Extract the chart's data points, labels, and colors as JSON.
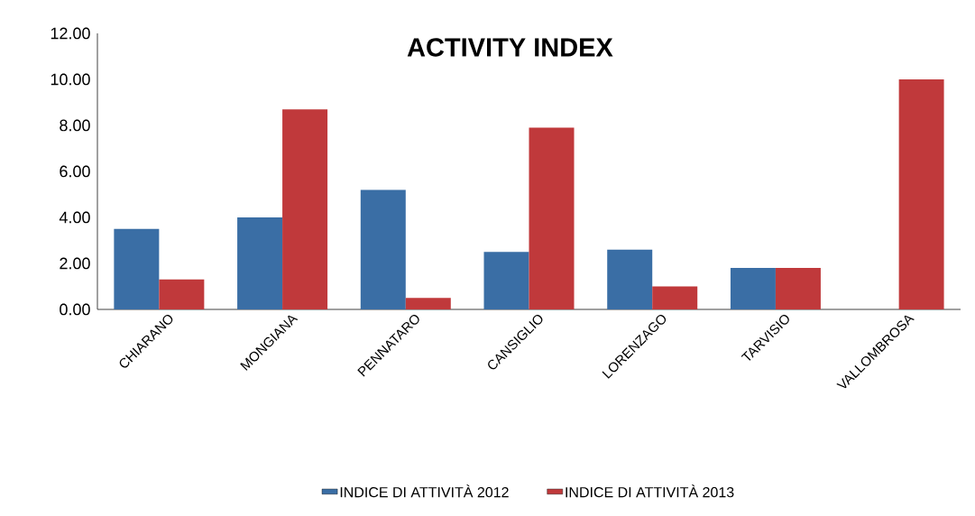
{
  "chart_data": {
    "type": "bar",
    "title": "ACTIVITY INDEX",
    "categories": [
      "CHIARANO",
      "MONGIANA",
      "PENNATARO",
      "CANSIGLIO",
      "LORENZAGO",
      "TARVISIO",
      "VALLOMBROSA"
    ],
    "series": [
      {
        "name": "INDICE DI ATTIVITÀ 2012",
        "color": "#3a6ea5",
        "values": [
          3.5,
          4.0,
          5.2,
          2.5,
          2.6,
          1.8,
          null
        ]
      },
      {
        "name": "INDICE DI ATTIVITÀ 2013",
        "color": "#c0393b",
        "values": [
          1.3,
          8.7,
          0.5,
          7.9,
          1.0,
          1.8,
          10.0
        ]
      }
    ],
    "ylim": [
      0,
      12
    ],
    "yticks": [
      {
        "value": 0,
        "label": "0.00"
      },
      {
        "value": 2,
        "label": "2.00"
      },
      {
        "value": 4,
        "label": "4.00"
      },
      {
        "value": 6,
        "label": "6.00"
      },
      {
        "value": 8,
        "label": "8.00"
      },
      {
        "value": 10,
        "label": "10.00"
      },
      {
        "value": 12,
        "label": "12.00"
      }
    ],
    "grid": false,
    "legend": "bottom"
  }
}
